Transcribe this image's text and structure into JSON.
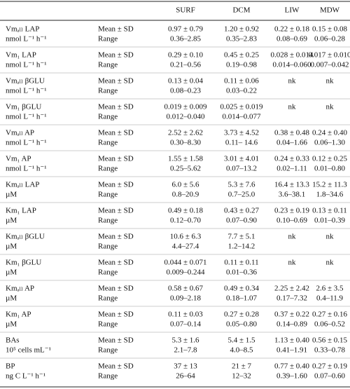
{
  "table": {
    "columns": [
      "SURF",
      "DCM",
      "LIW",
      "MDW"
    ],
    "rows": [
      {
        "parameter": "Vmₐₗₗ LAP",
        "unit": "nmol L⁻¹ h⁻¹",
        "stats": [
          "Mean ± SD",
          "Range"
        ],
        "mean": [
          "0.97 ± 0.79",
          "1.20 ± 0.92",
          "0.22 ± 0.18",
          "0.15 ± 0.08"
        ],
        "range": [
          "0.36–2.85",
          "0.35–2.83",
          "0.08–0.69",
          "0.06–0.28"
        ]
      },
      {
        "parameter": "Vm₁ LAP",
        "unit": "nmol L⁻¹ h⁻¹",
        "stats": [
          "Mean ± SD",
          "Range"
        ],
        "mean": [
          "0.29 ± 0.10",
          "0.45 ± 0.25",
          "0.028 ± 0.014",
          "0.017 ± 0.010"
        ],
        "range": [
          "0.21–0.56",
          "0.19–0.98",
          "0.014–0.060",
          "0.007–0.042"
        ]
      },
      {
        "parameter": "Vmₐₗₗ βGLU",
        "unit": "nmol L⁻¹ h⁻¹",
        "stats": [
          "Mean ± SD",
          "Range"
        ],
        "mean": [
          "0.13 ± 0.04",
          "0.11 ± 0.06",
          "nk",
          "nk"
        ],
        "range": [
          "0.08–0.23",
          "0.03–0.22",
          null,
          null
        ]
      },
      {
        "parameter": "Vm₁ βGLU",
        "unit": "nmol L⁻¹ h⁻¹",
        "stats": [
          "Mean ± SD",
          "Range"
        ],
        "mean": [
          "0.019 ± 0.009",
          "0.025 ± 0.019",
          "nk",
          "nk"
        ],
        "range": [
          "0.012–0.040",
          "0.014–0.077",
          null,
          null
        ]
      },
      {
        "parameter": "Vmₐₗₗ AP",
        "unit": "nmol L⁻¹ h⁻¹",
        "stats": [
          "Mean ± SD",
          "Range"
        ],
        "mean": [
          "2.52 ± 2.62",
          "3.73 ± 4.52",
          "0.38 ± 0.48",
          "0.24 ± 0.40"
        ],
        "range": [
          "0.30–8.30",
          "0.11– 14.6",
          "0.04–1.66",
          "0.06–1.30"
        ]
      },
      {
        "parameter": "Vm₁ AP",
        "unit": "nmol L⁻¹ h⁻¹",
        "stats": [
          "Mean ± SD",
          "Range"
        ],
        "mean": [
          "1.55 ± 1.58",
          "3.01 ± 4.01",
          "0.24 ± 0.33",
          "0.12 ± 0.25"
        ],
        "range": [
          "0.25–5.62",
          "0.07–13.2",
          "0.02–1.11",
          "0.01–0.80"
        ]
      },
      {
        "parameter": "Kmₐₗₗ LAP",
        "unit": "µM",
        "stats": [
          "Mean ± SD",
          "Range"
        ],
        "mean": [
          "6.0 ± 5.6",
          "5.3 ± 7.6",
          "16.4 ± 13.3",
          "15.2 ± 11.3"
        ],
        "range": [
          "0.8–20.9",
          "0.7–25.0",
          "3.6–38.1",
          "1.8–34.6"
        ]
      },
      {
        "parameter": "Km₁ LAP",
        "unit": "µM",
        "stats": [
          "Mean ± SD",
          "Range"
        ],
        "mean": [
          "0.49 ± 0.18",
          "0.43 ± 0.27",
          "0.23 ± 0.19",
          "0.13 ± 0.11"
        ],
        "range": [
          "0.12–0.70",
          "0.07–0.90",
          "0.10–0.69",
          "0.01–0.39"
        ]
      },
      {
        "parameter": "Kmₐₗₗ βGLU",
        "unit": "µM",
        "stats": [
          "Mean ± SD",
          "Range"
        ],
        "mean": [
          "10.6 ± 6.3",
          "7.7 ± 5.1",
          "nk",
          "nk"
        ],
        "range": [
          "4.4–27.4",
          "1.2–14.2",
          null,
          null
        ]
      },
      {
        "parameter": "Km₁ βGLU",
        "unit": "µM",
        "stats": [
          "Mean ± SD",
          "Range"
        ],
        "mean": [
          "0.044 ± 0.071",
          "0.11 ± 0.11",
          "nk",
          "nk"
        ],
        "range": [
          "0.009–0.244",
          "0.01–0.36",
          null,
          null
        ]
      },
      {
        "parameter": "Kmₐₗₗ AP",
        "unit": "µM",
        "stats": [
          "Mean ± SD",
          "Range"
        ],
        "mean": [
          "0.58 ± 0.67",
          "0.49 ± 0.34",
          "2.25 ± 2.42",
          "2.6 ± 3.5"
        ],
        "range": [
          "0.09–2.18",
          "0.18–1.07",
          "0.17–7.32",
          "0.4–11.9"
        ]
      },
      {
        "parameter": "Km₁ AP",
        "unit": "µM",
        "stats": [
          "Mean ± SD",
          "Range"
        ],
        "mean": [
          "0.11 ± 0.03",
          "0.27 ± 0.28",
          "0.37 ± 0.22",
          "0.27 ± 0.16"
        ],
        "range": [
          "0.07–0.14",
          "0.05–0.80",
          "0.14–0.89",
          "0.06–0.52"
        ]
      },
      {
        "parameter": "BAs",
        "unit": "10⁵ cells mL⁻¹",
        "stats": [
          "Mean ± SD",
          "Range"
        ],
        "mean": [
          "5.3 ± 1.6",
          "5.4 ± 1.5",
          "1.13 ± 0.40",
          "0.56 ± 0.15"
        ],
        "range": [
          "2.1–7.8",
          "4.0–8.5",
          "0.41–1.91",
          "0.33–0.78"
        ]
      },
      {
        "parameter": "BP",
        "unit": "ng C L⁻¹ h⁻¹",
        "stats": [
          "Mean ± SD",
          "Range"
        ],
        "mean": [
          "37 ± 13",
          "21 ± 7",
          "0.77 ± 0.40",
          "0.27 ± 0.19"
        ],
        "range": [
          "26–64",
          "12–32",
          "0.39–1.60",
          "0.07–0.60"
        ]
      }
    ]
  }
}
